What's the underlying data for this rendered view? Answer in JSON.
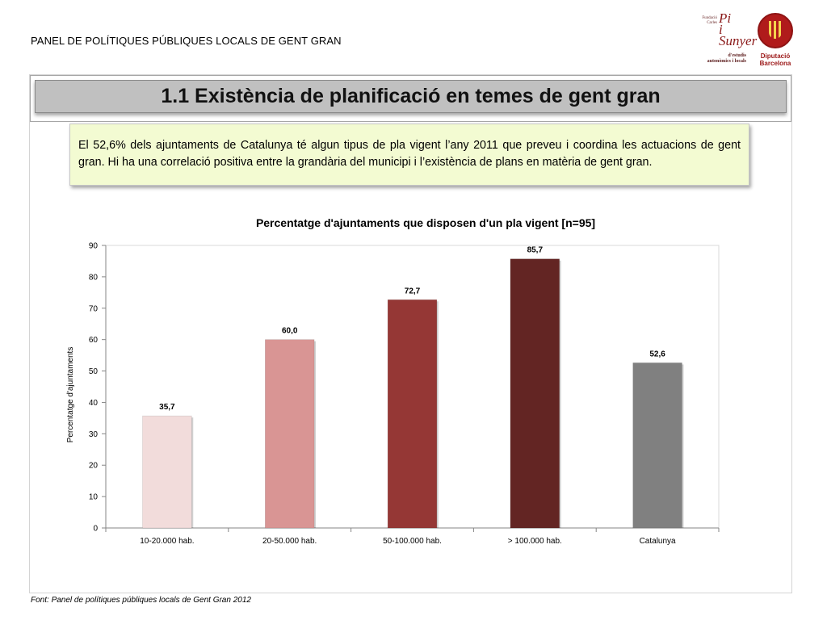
{
  "header": {
    "title": "PANEL DE POLÍTIQUES PÚBLIQUES LOCALS DE GENT GRAN"
  },
  "logos": {
    "pisunyer": {
      "small": "Fundació Carles",
      "big_line1": "Pi",
      "big_line2": "i Sunyer",
      "sub": "d'estudis autonòmics i locals"
    },
    "diputacio": {
      "line1": "Diputació",
      "line2": "Barcelona",
      "icon": "coat-of-arms-icon"
    }
  },
  "slide": {
    "title": "1.1 Existència de planificació en temes de gent gran",
    "summary": "El 52,6% dels ajuntaments de Catalunya té algun tipus de pla vigent l’any 2011 que preveu i coordina les actuacions de gent gran.  Hi ha una correlació positiva entre la grandària del municipi i l’existència de plans en matèria de gent gran."
  },
  "chart_data": {
    "type": "bar",
    "title": "Percentatge d'ajuntaments que disposen d'un pla vigent [n=95]",
    "xlabel": "",
    "ylabel": "Percentatge d'ajuntaments",
    "ylim": [
      0,
      90
    ],
    "yticks": [
      0,
      10,
      20,
      30,
      40,
      50,
      60,
      70,
      80,
      90
    ],
    "categories": [
      "10-20.000 hab.",
      "20-50.000 hab.",
      "50-100.000 hab.",
      "> 100.000 hab.",
      "Catalunya"
    ],
    "values": [
      35.7,
      60.0,
      72.7,
      85.7,
      52.6
    ],
    "value_labels": [
      "35,7",
      "60,0",
      "72,7",
      "85,7",
      "52,6"
    ],
    "colors": [
      "#f2dcdb",
      "#d99594",
      "#953735",
      "#632523",
      "#808080"
    ],
    "grid": false,
    "legend": "none"
  },
  "footer": {
    "source": "Font: Panel de  polítiques públiques locals de Gent Gran 2012"
  }
}
